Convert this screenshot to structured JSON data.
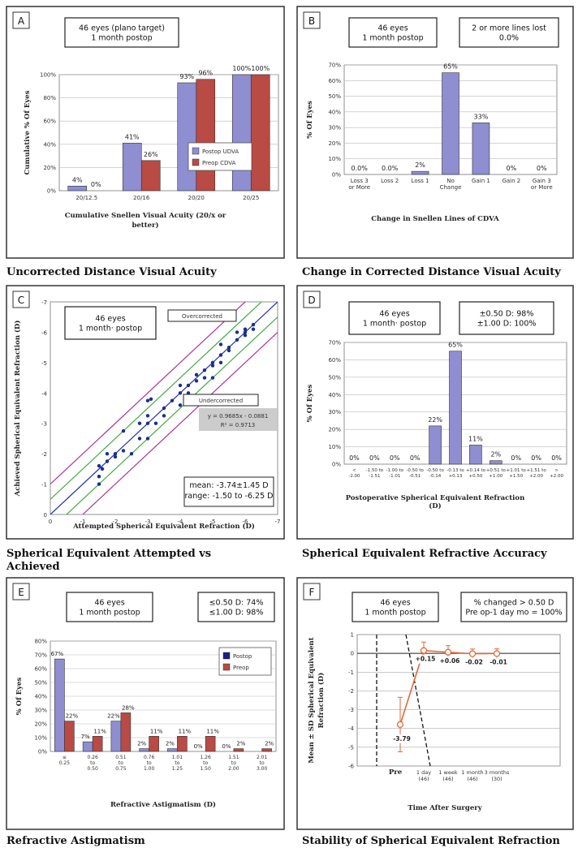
{
  "colors": {
    "blue": "#8e8ed0",
    "red": "#b94a44",
    "frame": "#333333",
    "fitline": "#2233aa",
    "green": "#44aa44",
    "magenta": "#aa3399",
    "orange": "#e06a3a"
  },
  "chart_data": [
    {
      "panel": "A",
      "type": "bar",
      "caption": "Uncorrected Distance Visual Acuity",
      "infobox": [
        "46 eyes (plano target)",
        "1 month   postop"
      ],
      "xlabel": "Cumulative Snellen Visual Acuity (20/x or better)",
      "ylabel": "Cumulative % Of Eyes",
      "yticks": [
        "0%",
        "20%",
        "40%",
        "60%",
        "80%",
        "100%"
      ],
      "ylim": [
        0,
        100
      ],
      "categories": [
        "20/12.5",
        "20/16",
        "20/20",
        "20/25"
      ],
      "series": [
        {
          "name": "Postop UDVA",
          "values": [
            4,
            41,
            93,
            100
          ],
          "labels": [
            "4%",
            "41%",
            "93%",
            "100%"
          ]
        },
        {
          "name": "Preop CDVA",
          "values": [
            0,
            26,
            96,
            100
          ],
          "labels": [
            "0%",
            "26%",
            "96%",
            "100%"
          ]
        }
      ],
      "legend": "right"
    },
    {
      "panel": "B",
      "type": "bar",
      "caption": "Change in Corrected Distance Visual Acuity",
      "infobox": [
        "46 eyes",
        "1 month   postop"
      ],
      "infobox2": [
        "2 or more lines lost",
        "0.0%"
      ],
      "xlabel": "Change in Snellen Lines of CDVA",
      "ylabel": "% Of Eyes",
      "yticks": [
        "0%",
        "10%",
        "20%",
        "30%",
        "40%",
        "50%",
        "60%",
        "70%"
      ],
      "ylim": [
        0,
        70
      ],
      "categories": [
        "Loss 3 or More",
        "Loss 2",
        "Loss 1",
        "No Change",
        "Gain 1",
        "Gain 2",
        "Gain 3 or More"
      ],
      "values": [
        0,
        0,
        2,
        65,
        33,
        0,
        0
      ],
      "labels": [
        "0.0%",
        "0.0%",
        "2%",
        "65%",
        "33%",
        "0%",
        "0%"
      ]
    },
    {
      "panel": "C",
      "type": "scatter",
      "caption": "Spherical Equivalent Attempted vs Achieved",
      "infobox": [
        "46 eyes",
        "1 month· postop"
      ],
      "overlabel": "Overcorrected",
      "underlabel": "Undercorrected",
      "equation": [
        "y = 0.9685x - 0.0881",
        "R² = 0.9713"
      ],
      "stats": [
        "mean: -3.74±1.45 D",
        "range: -1.50 to -6.25 D"
      ],
      "xlabel": "Attempted Spherical Equivalent Refraction (D)",
      "ylabel": "Achieved Spherical Equivalent Refraction (D)",
      "xticks": [
        "0",
        "-1",
        "-2",
        "-3",
        "-4",
        "-5",
        "-6",
        "-7"
      ],
      "yticks": [
        "0",
        "-1",
        "-2",
        "-3",
        "-4",
        "-5",
        "-6",
        "-7"
      ],
      "xlim": [
        0,
        -7
      ],
      "ylim": [
        0,
        -7
      ],
      "fit": {
        "slope": 0.9685,
        "intercept": -0.0881
      },
      "points": [
        [
          -1.5,
          -1.0
        ],
        [
          -1.5,
          -1.25
        ],
        [
          -1.5,
          -1.6
        ],
        [
          -1.6,
          -1.5
        ],
        [
          -1.75,
          -2.0
        ],
        [
          -2.0,
          -1.9
        ],
        [
          -2.0,
          -2.0
        ],
        [
          -2.25,
          -2.75
        ],
        [
          -2.5,
          -2.0
        ],
        [
          -2.75,
          -2.5
        ],
        [
          -2.75,
          -3.0
        ],
        [
          -3.0,
          -2.5
        ],
        [
          -3.0,
          -3.75
        ],
        [
          -3.0,
          -3.0
        ],
        [
          -3.0,
          -3.25
        ],
        [
          -3.1,
          -3.8
        ],
        [
          -3.25,
          -3.0
        ],
        [
          -3.5,
          -3.5
        ],
        [
          -3.75,
          -3.75
        ],
        [
          -4.0,
          -4.0
        ],
        [
          -4.0,
          -3.6
        ],
        [
          -4.25,
          -4.25
        ],
        [
          -4.25,
          -4.0
        ],
        [
          -4.5,
          -4.4
        ],
        [
          -4.5,
          -4.6
        ],
        [
          -4.75,
          -4.75
        ],
        [
          -4.75,
          -4.5
        ],
        [
          -5.0,
          -4.5
        ],
        [
          -5.0,
          -5.0
        ],
        [
          -5.0,
          -4.9
        ],
        [
          -5.25,
          -5.25
        ],
        [
          -5.25,
          -5.0
        ],
        [
          -5.5,
          -5.4
        ],
        [
          -5.5,
          -5.5
        ],
        [
          -5.75,
          -5.75
        ],
        [
          -5.75,
          -6.0
        ],
        [
          -6.0,
          -5.9
        ],
        [
          -6.0,
          -6.0
        ],
        [
          -6.0,
          -6.1
        ],
        [
          -6.25,
          -6.25
        ],
        [
          -6.25,
          -6.1
        ],
        [
          -3.5,
          -3.25
        ],
        [
          -2.25,
          -2.1
        ],
        [
          -4.0,
          -4.25
        ],
        [
          -5.25,
          -5.6
        ],
        [
          -1.75,
          -1.75
        ]
      ]
    },
    {
      "panel": "D",
      "type": "bar",
      "caption": "Spherical Equivalent Refractive Accuracy",
      "infobox": [
        "46 eyes",
        "1 month· postop"
      ],
      "infobox2": [
        "±0.50 D: 98%",
        "±1.00 D: 100%"
      ],
      "xlabel": [
        "Postoperative Spherical Equivalent Refraction",
        "(D)"
      ],
      "ylabel": "% Of Eyes",
      "yticks": [
        "0%",
        "10%",
        "20%",
        "30%",
        "40%",
        "50%",
        "60%",
        "70%"
      ],
      "ylim": [
        0,
        70
      ],
      "categories": [
        [
          "<",
          "-2.00"
        ],
        [
          "-1.50 to",
          "-1.51"
        ],
        [
          "-1.00 to",
          "-1.01"
        ],
        [
          "-0.50 to",
          "-0.51"
        ],
        [
          "-0.50 to",
          "-0.14"
        ],
        [
          "-0.13 to",
          "+0.13"
        ],
        [
          "+0.14 to",
          "+0.50"
        ],
        [
          "+0.51 to",
          "+1.00"
        ],
        [
          "+1.01 to",
          "+1.50"
        ],
        [
          "+1.51 to",
          "+2.00"
        ],
        [
          ">",
          "+2.00"
        ]
      ],
      "values": [
        0,
        0,
        0,
        0,
        22,
        65,
        11,
        2,
        0,
        0,
        0
      ],
      "labels": [
        "0%",
        "0%",
        "0%",
        "0%",
        "22%",
        "65%",
        "11%",
        "2%",
        "0%",
        "0%",
        "0%"
      ]
    },
    {
      "panel": "E",
      "type": "bar",
      "caption": "Refractive Astigmatism",
      "infobox": [
        "46 eyes",
        "1 month   postop"
      ],
      "infobox2": [
        "≤0.50 D: 74%",
        "≤1.00 D: 98%"
      ],
      "xlabel": "Refractive Astigmatism (D)",
      "ylabel": "% Of Eyes",
      "yticks": [
        "0%",
        "10%",
        "20%",
        "30%",
        "40%",
        "50%",
        "60%",
        "70%",
        "80%"
      ],
      "ylim": [
        0,
        80
      ],
      "categories": [
        [
          "≤",
          "0.25"
        ],
        [
          "0.26",
          "to",
          "0.50"
        ],
        [
          "0.51",
          "to",
          "0.75"
        ],
        [
          "0.76",
          "to",
          "1.00"
        ],
        [
          "1.01",
          "to",
          "1.25"
        ],
        [
          "1.26",
          "to",
          "1.50"
        ],
        [
          "1.51",
          "to",
          "2.00"
        ],
        [
          "2.01",
          "to",
          "3.00"
        ]
      ],
      "series": [
        {
          "name": "Postop",
          "values": [
            67,
            7,
            22,
            2,
            2,
            0,
            0,
            0
          ],
          "labels": [
            "67%",
            "7%",
            "22%",
            "2%",
            "2%",
            "0%",
            "0%",
            ""
          ]
        },
        {
          "name": "Preop",
          "values": [
            22,
            11,
            28,
            11,
            11,
            11,
            2,
            2
          ],
          "labels": [
            "22%",
            "11%",
            "28%",
            "11%",
            "11%",
            "11%",
            "2%",
            "2%"
          ]
        }
      ],
      "legend": "top-right"
    },
    {
      "panel": "F",
      "type": "line",
      "caption": "Stability of Spherical Equivalent Refraction",
      "infobox": [
        "46 eyes",
        "1 month   postop"
      ],
      "infobox2": [
        "% changed > 0.50 D",
        "Pre op-1 day mo = 100%"
      ],
      "xlabel": "Time After Surgery",
      "ylabel": [
        "Mean ± SD Spherical Equivalent",
        "Refraction (D)"
      ],
      "yticks": [
        "1",
        "0",
        "-1",
        "-2",
        "-3",
        "-4",
        "-5",
        "-6"
      ],
      "ylim": [
        -6,
        1
      ],
      "categories": [
        [
          "Pre"
        ],
        [
          "1 day",
          "(46)"
        ],
        [
          "1 week",
          "(46)"
        ],
        [
          "1 month",
          "(46)"
        ],
        [
          "3 months",
          "(30)"
        ]
      ],
      "values": [
        -3.79,
        0.15,
        0.06,
        -0.02,
        -0.01
      ],
      "sd": [
        1.45,
        0.45,
        0.35,
        0.25,
        0.25
      ],
      "labels": [
        "-3.79",
        "+0.15",
        "+0.06",
        "-0.02",
        "-0.01"
      ]
    }
  ]
}
